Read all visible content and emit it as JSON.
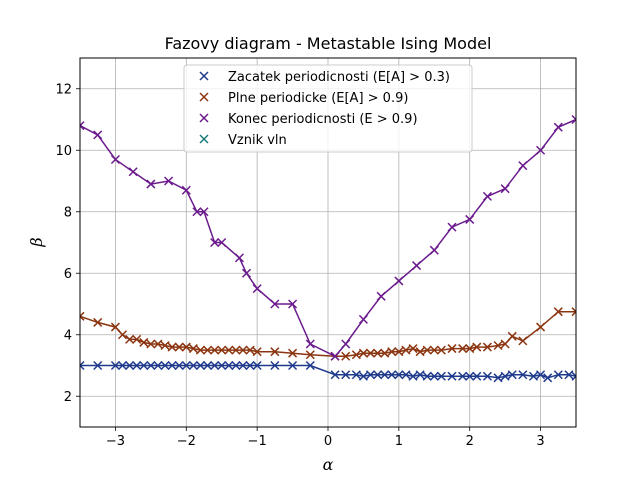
{
  "chart_data": {
    "type": "line",
    "title": "Fazovy diagram - Metastable Ising Model",
    "xlabel": "α",
    "ylabel": "β",
    "xlim": [
      -3.5,
      3.5
    ],
    "ylim": [
      1,
      13
    ],
    "xticks": [
      -3,
      -2,
      -1,
      0,
      1,
      2,
      3
    ],
    "yticks": [
      2,
      4,
      6,
      8,
      10,
      12
    ],
    "grid": true,
    "legend_position": "top-center",
    "marker": "x",
    "series": [
      {
        "name": "Zacatek periodicnosti (E[A] > 0.3)",
        "color": "#1f3a8c",
        "points": [
          [
            -3.5,
            3.0
          ],
          [
            -3.25,
            3.0
          ],
          [
            -3.0,
            3.0
          ],
          [
            -2.9,
            3.0
          ],
          [
            -2.8,
            3.0
          ],
          [
            -2.7,
            3.0
          ],
          [
            -2.6,
            3.0
          ],
          [
            -2.5,
            3.0
          ],
          [
            -2.4,
            3.0
          ],
          [
            -2.3,
            3.0
          ],
          [
            -2.2,
            3.0
          ],
          [
            -2.1,
            3.0
          ],
          [
            -2.0,
            3.0
          ],
          [
            -1.9,
            3.0
          ],
          [
            -1.8,
            3.0
          ],
          [
            -1.7,
            3.0
          ],
          [
            -1.6,
            3.0
          ],
          [
            -1.5,
            3.0
          ],
          [
            -1.4,
            3.0
          ],
          [
            -1.3,
            3.0
          ],
          [
            -1.2,
            3.0
          ],
          [
            -1.1,
            3.0
          ],
          [
            -1.0,
            3.0
          ],
          [
            -0.75,
            3.0
          ],
          [
            -0.5,
            3.0
          ],
          [
            -0.25,
            3.0
          ],
          [
            0.1,
            2.7
          ],
          [
            0.25,
            2.7
          ],
          [
            0.4,
            2.7
          ],
          [
            0.5,
            2.65
          ],
          [
            0.6,
            2.7
          ],
          [
            0.7,
            2.7
          ],
          [
            0.8,
            2.7
          ],
          [
            0.9,
            2.7
          ],
          [
            1.0,
            2.7
          ],
          [
            1.1,
            2.7
          ],
          [
            1.2,
            2.65
          ],
          [
            1.3,
            2.7
          ],
          [
            1.4,
            2.65
          ],
          [
            1.5,
            2.65
          ],
          [
            1.6,
            2.65
          ],
          [
            1.75,
            2.65
          ],
          [
            1.9,
            2.65
          ],
          [
            2.0,
            2.65
          ],
          [
            2.1,
            2.65
          ],
          [
            2.25,
            2.65
          ],
          [
            2.4,
            2.6
          ],
          [
            2.5,
            2.65
          ],
          [
            2.6,
            2.7
          ],
          [
            2.75,
            2.7
          ],
          [
            2.9,
            2.65
          ],
          [
            3.0,
            2.7
          ],
          [
            3.1,
            2.6
          ],
          [
            3.25,
            2.7
          ],
          [
            3.4,
            2.7
          ],
          [
            3.5,
            2.65
          ]
        ]
      },
      {
        "name": "Plne periodicke (E[A] > 0.9)",
        "color": "#8b3511",
        "points": [
          [
            -3.5,
            4.6
          ],
          [
            -3.25,
            4.4
          ],
          [
            -3.0,
            4.25
          ],
          [
            -2.9,
            4.0
          ],
          [
            -2.8,
            3.85
          ],
          [
            -2.7,
            3.85
          ],
          [
            -2.6,
            3.75
          ],
          [
            -2.5,
            3.7
          ],
          [
            -2.4,
            3.7
          ],
          [
            -2.3,
            3.65
          ],
          [
            -2.2,
            3.6
          ],
          [
            -2.1,
            3.6
          ],
          [
            -2.0,
            3.6
          ],
          [
            -1.9,
            3.55
          ],
          [
            -1.8,
            3.5
          ],
          [
            -1.7,
            3.5
          ],
          [
            -1.6,
            3.5
          ],
          [
            -1.5,
            3.5
          ],
          [
            -1.4,
            3.5
          ],
          [
            -1.3,
            3.5
          ],
          [
            -1.2,
            3.5
          ],
          [
            -1.1,
            3.5
          ],
          [
            -1.0,
            3.45
          ],
          [
            -0.75,
            3.45
          ],
          [
            -0.5,
            3.4
          ],
          [
            -0.25,
            3.35
          ],
          [
            0.1,
            3.3
          ],
          [
            0.25,
            3.3
          ],
          [
            0.4,
            3.35
          ],
          [
            0.5,
            3.4
          ],
          [
            0.6,
            3.4
          ],
          [
            0.7,
            3.4
          ],
          [
            0.8,
            3.4
          ],
          [
            0.9,
            3.45
          ],
          [
            1.0,
            3.45
          ],
          [
            1.1,
            3.5
          ],
          [
            1.2,
            3.55
          ],
          [
            1.3,
            3.45
          ],
          [
            1.4,
            3.5
          ],
          [
            1.5,
            3.5
          ],
          [
            1.6,
            3.5
          ],
          [
            1.75,
            3.55
          ],
          [
            1.9,
            3.55
          ],
          [
            2.0,
            3.55
          ],
          [
            2.1,
            3.6
          ],
          [
            2.25,
            3.6
          ],
          [
            2.4,
            3.65
          ],
          [
            2.5,
            3.7
          ],
          [
            2.6,
            3.95
          ],
          [
            2.75,
            3.8
          ],
          [
            3.0,
            4.25
          ],
          [
            3.25,
            4.75
          ],
          [
            3.5,
            4.75
          ]
        ]
      },
      {
        "name": "Konec periodicnosti (E > 0.9)",
        "color": "#6a1a8c",
        "points": [
          [
            -3.5,
            10.8
          ],
          [
            -3.25,
            10.5
          ],
          [
            -3.0,
            9.7
          ],
          [
            -2.75,
            9.3
          ],
          [
            -2.5,
            8.9
          ],
          [
            -2.25,
            9.0
          ],
          [
            -2.0,
            8.7
          ],
          [
            -1.85,
            8.0
          ],
          [
            -1.75,
            8.0
          ],
          [
            -1.6,
            7.0
          ],
          [
            -1.5,
            7.0
          ],
          [
            -1.25,
            6.5
          ],
          [
            -1.15,
            6.0
          ],
          [
            -1.0,
            5.5
          ],
          [
            -0.75,
            5.0
          ],
          [
            -0.5,
            5.0
          ],
          [
            -0.25,
            3.7
          ],
          [
            0.1,
            3.3
          ],
          [
            0.25,
            3.7
          ],
          [
            0.5,
            4.5
          ],
          [
            0.75,
            5.25
          ],
          [
            1.0,
            5.75
          ],
          [
            1.25,
            6.25
          ],
          [
            1.5,
            6.75
          ],
          [
            1.75,
            7.5
          ],
          [
            2.0,
            7.75
          ],
          [
            2.25,
            8.5
          ],
          [
            2.5,
            8.75
          ],
          [
            2.75,
            9.5
          ],
          [
            3.0,
            10.0
          ],
          [
            3.25,
            10.75
          ],
          [
            3.5,
            11.0
          ]
        ]
      },
      {
        "name": "Vznik vln",
        "color": "#1a7a7a",
        "points": []
      }
    ]
  }
}
